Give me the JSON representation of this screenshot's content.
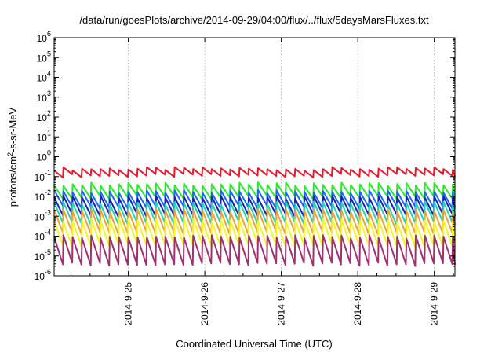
{
  "chart_data": {
    "type": "line",
    "title": "/data/run/goesPlots/archive/2014-09-29/04:00/flux/../flux/5daysMarsFluxes.txt",
    "xlabel": "Coordinated Universal Time (UTC)",
    "ylabel": {
      "prefix": "protons/cm",
      "superscript": "2",
      "suffix": "-s-sr-MeV"
    },
    "xlim": [
      -0.97,
      4.27
    ],
    "xlim_note_units": "days relative to 2014-9-25",
    "ylim_exponents": [
      -6,
      6
    ],
    "y_scale": "log",
    "y_tick_base": "10",
    "y_tick_exponents": [
      "-6",
      "-5",
      "-4",
      "-3",
      "-2",
      "-1",
      "0",
      "1",
      "2",
      "3",
      "4",
      "5",
      "6"
    ],
    "x_ticks": [
      {
        "label": "2014-9-25",
        "pos": 0
      },
      {
        "label": "2014-9-26",
        "pos": 1
      },
      {
        "label": "2014-9-27",
        "pos": 2
      },
      {
        "label": "2014-9-28",
        "pos": 3
      },
      {
        "label": "2014-9-29",
        "pos": 4
      }
    ],
    "grid": true,
    "series": [
      {
        "color": "#e8192c",
        "pattern": "sawtooth",
        "approx_mean_log": -0.8
      },
      {
        "color": "#22ee22",
        "pattern": "sawtooth",
        "approx_mean_log": -1.75
      },
      {
        "color": "#1a66ff",
        "pattern": "sawtooth",
        "approx_mean_log": -2.2
      },
      {
        "color": "#1420b8",
        "pattern": "sawtooth",
        "approx_mean_log": -2.55
      },
      {
        "color": "#22d4b0",
        "pattern": "sawtooth",
        "approx_mean_log": -2.9
      },
      {
        "color": "#f0a030",
        "pattern": "sawtooth",
        "approx_mean_log": -3.35
      },
      {
        "color": "#f5f520",
        "pattern": "sawtooth",
        "approx_mean_log": -3.9
      },
      {
        "color": "#a03070",
        "pattern": "sawtooth",
        "approx_mean_log": -4.8
      }
    ]
  }
}
